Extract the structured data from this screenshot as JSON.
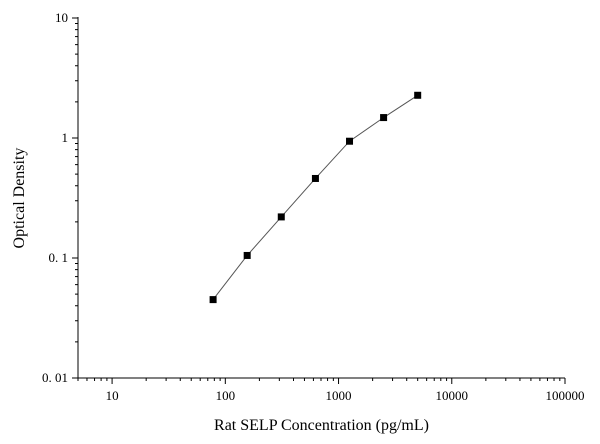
{
  "chart_data": {
    "type": "scatter",
    "title": "",
    "xlabel": "Rat SELP Concentration (pg/mL)",
    "ylabel": "Optical Density",
    "xscale": "log",
    "yscale": "log",
    "xlim": [
      5,
      100000
    ],
    "ylim": [
      0.01,
      10
    ],
    "grid": false,
    "legend": "none",
    "connect_points": true,
    "marker": "square",
    "xticks": [
      10,
      100,
      1000,
      10000,
      100000
    ],
    "xtick_labels": [
      "10",
      "100",
      "1000",
      "10000",
      "100000"
    ],
    "yticks": [
      0.01,
      0.1,
      1,
      10
    ],
    "ytick_labels": [
      "0. 01",
      "0. 1",
      "1",
      "10"
    ],
    "series": [
      {
        "x": [
          78,
          156,
          312,
          625,
          1250,
          2500,
          5000
        ],
        "y": [
          0.045,
          0.105,
          0.22,
          0.46,
          0.94,
          1.48,
          2.27
        ]
      }
    ],
    "colors": {
      "axis": "#000000",
      "line": "#555555",
      "marker": "#000000"
    }
  }
}
